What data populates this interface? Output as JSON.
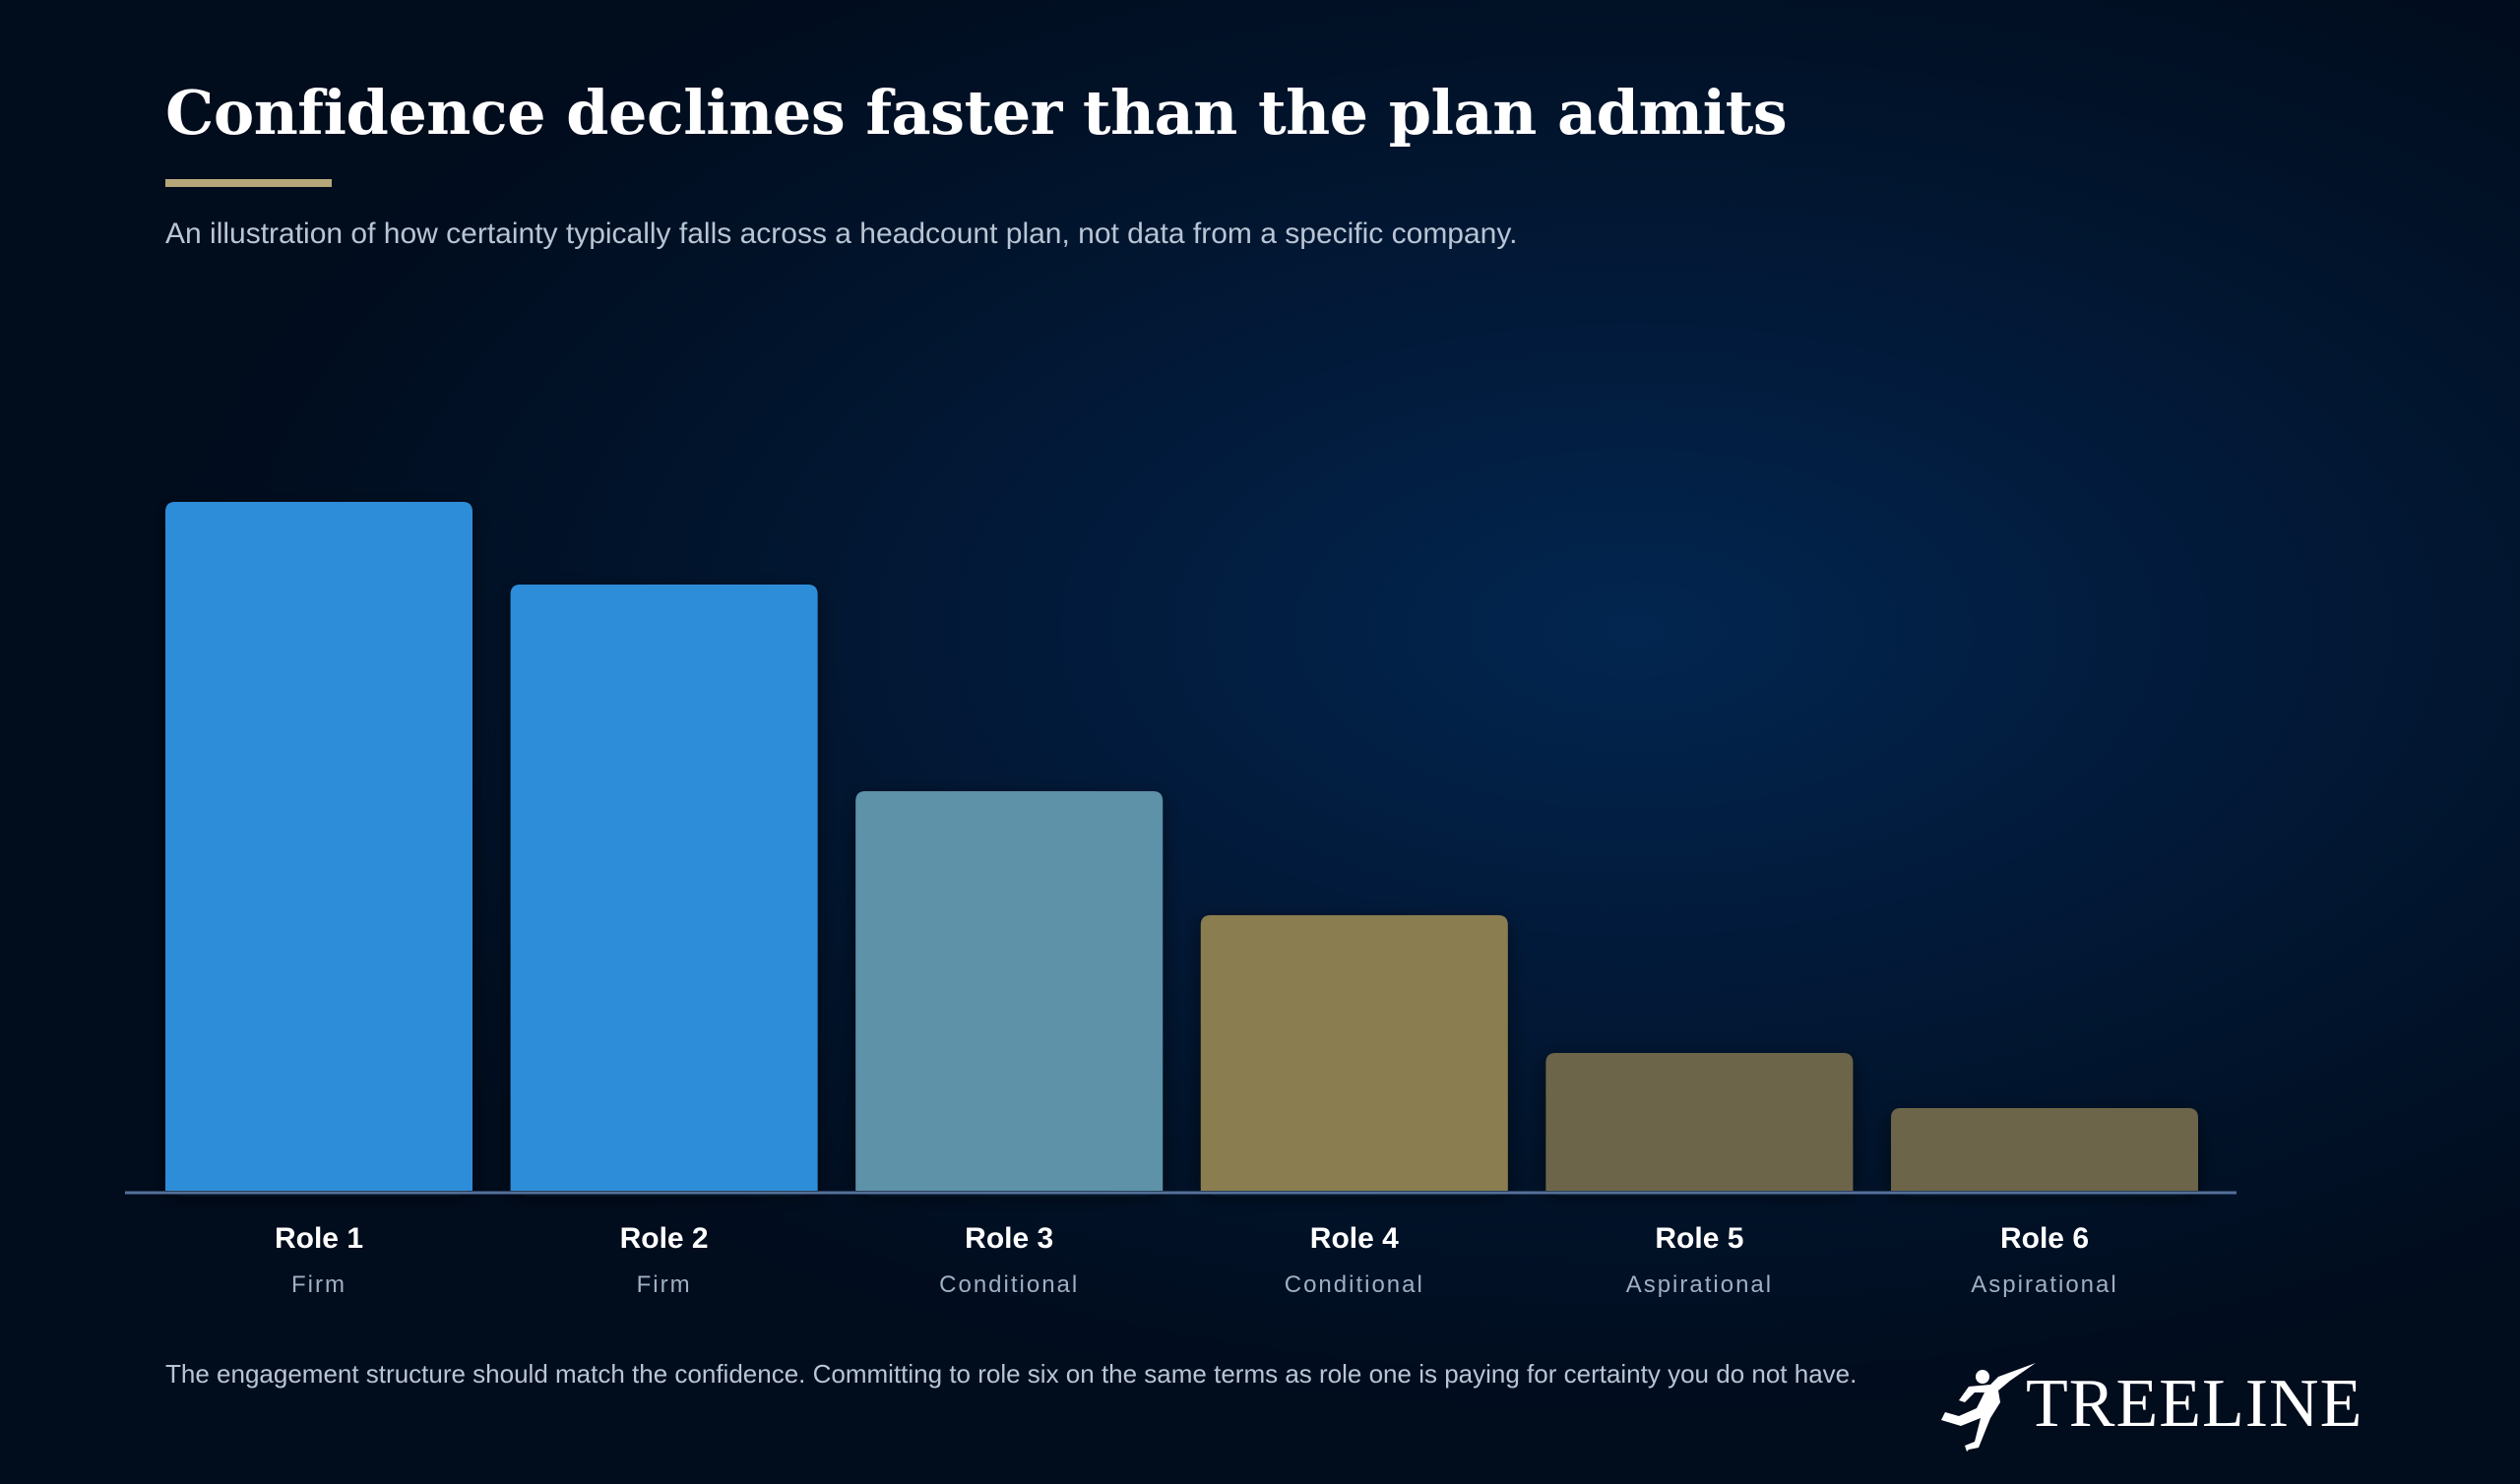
{
  "title": "Confidence declines faster than the plan admits",
  "subtitle": "An illustration of how certainty typically falls across a headcount plan, not data from a specific company.",
  "footnote": "The engagement structure should match the confidence. Committing to role six on the same terms as role one is paying for certainty you do not have.",
  "brand": {
    "name": "TREELINE",
    "icon": "running-figure-lightning-icon"
  },
  "colors": {
    "accent": "#b5a77a",
    "firm": "#2e8dd8",
    "conditional": "#5d92a8",
    "conditional_gold": "#8a7d50",
    "aspirational": "#6d6548",
    "axis": "#55709a"
  },
  "chart_data": {
    "type": "bar",
    "categories": [
      "Role 1",
      "Role 2",
      "Role 3",
      "Role 4",
      "Role 5",
      "Role 6"
    ],
    "groups": [
      "Firm",
      "Firm",
      "Conditional",
      "Conditional",
      "Aspirational",
      "Aspirational"
    ],
    "values": [
      100,
      88,
      58,
      40,
      20,
      12
    ],
    "bar_colors": [
      "#2e8dd8",
      "#2e8dd8",
      "#5d92a8",
      "#8a7d50",
      "#6d6548",
      "#6d6548"
    ],
    "ylim": [
      0,
      100
    ],
    "grid": false,
    "legend": "none",
    "xlabel": "",
    "ylabel": ""
  }
}
